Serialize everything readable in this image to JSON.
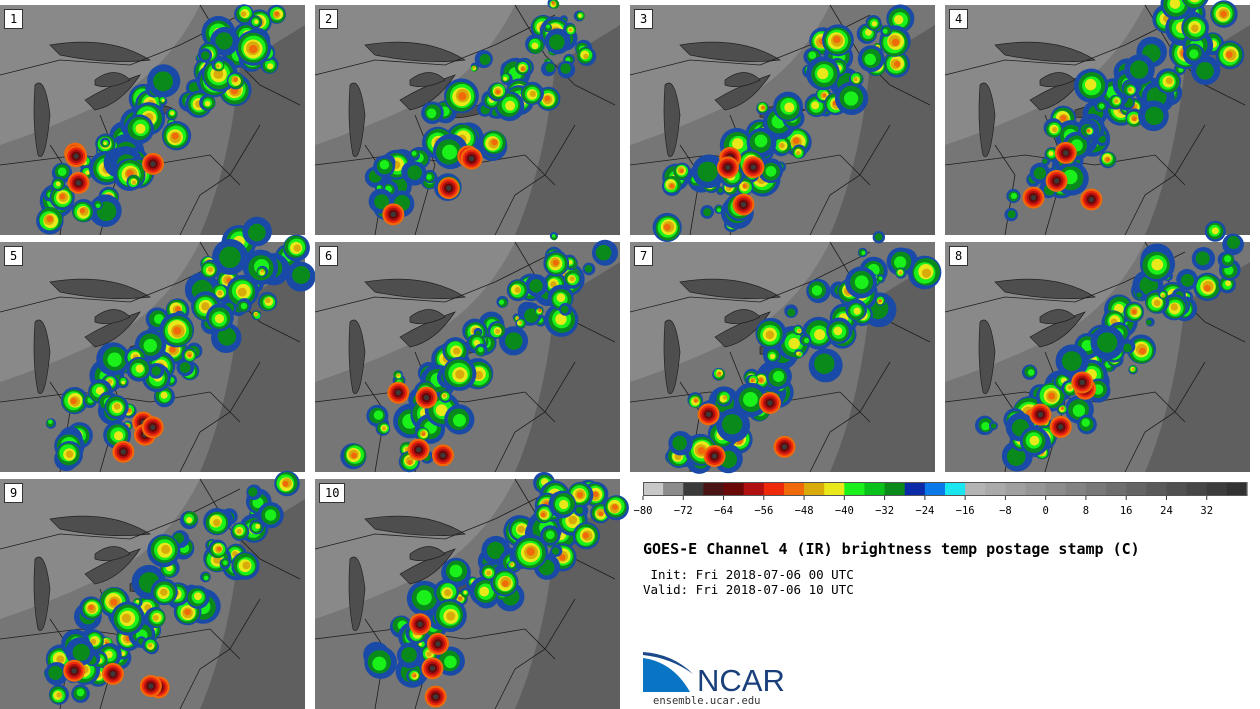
{
  "panels": [
    "1",
    "2",
    "3",
    "4",
    "5",
    "6",
    "7",
    "8",
    "9",
    "10"
  ],
  "colorbar": {
    "min": -80,
    "max": 40,
    "step": 4,
    "tick_labels": [
      "-80",
      "-72",
      "-64",
      "-56",
      "-48",
      "-40",
      "-32",
      "-24",
      "-16",
      "-8",
      "0",
      "8",
      "16",
      "24",
      "32"
    ],
    "colors": [
      "#c8c8c8",
      "#8c8c8c",
      "#3a3a3a",
      "#4a1414",
      "#6a0808",
      "#b01010",
      "#ee2a0a",
      "#f06a0a",
      "#d8aa0a",
      "#e8e81a",
      "#1af01a",
      "#0ac01a",
      "#0a8a1a",
      "#0a2aa8",
      "#0a78e8",
      "#1ae6f0",
      "#b4b4b4",
      "#aaaaaa",
      "#a0a0a0",
      "#969696",
      "#8c8c8c",
      "#828282",
      "#787878",
      "#6e6e6e",
      "#646464",
      "#5a5a5a",
      "#505050",
      "#464646",
      "#3c3c3c",
      "#323232"
    ]
  },
  "title": "GOES-E Channel 4 (IR) brightness temp postage stamp (C)",
  "init_line": " Init: Fri 2018-07-06 00 UTC",
  "valid_line": "Valid: Fri 2018-07-06 10 UTC",
  "logo_text": "NCAR",
  "site": "ensemble.ucar.edu"
}
